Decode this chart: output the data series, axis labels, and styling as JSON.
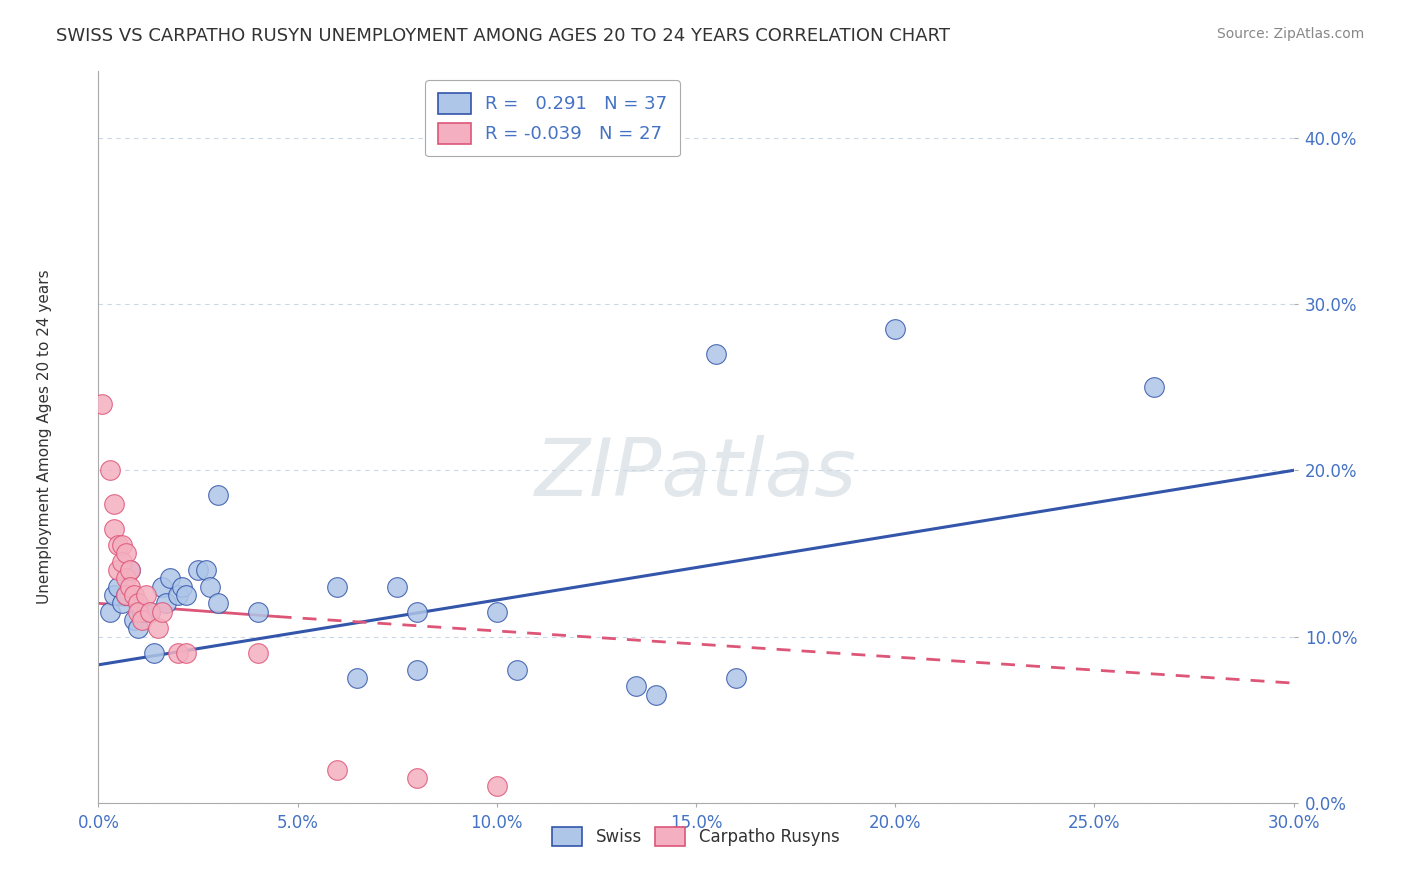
{
  "title": "SWISS VS CARPATHO RUSYN UNEMPLOYMENT AMONG AGES 20 TO 24 YEARS CORRELATION CHART",
  "source": "Source: ZipAtlas.com",
  "xlim": [
    0.0,
    0.3
  ],
  "ylim": [
    0.0,
    0.44
  ],
  "watermark": "ZIPatlas",
  "swiss_R": 0.291,
  "swiss_N": 37,
  "rusyn_R": -0.039,
  "rusyn_N": 27,
  "swiss_color": "#aec6e8",
  "rusyn_color": "#f4b0c0",
  "swiss_line_color": "#3355aa",
  "rusyn_line_color": "#dd5577",
  "background_color": "#ffffff",
  "grid_color": "#c8d8e8",
  "swiss_scatter": [
    [
      0.003,
      0.115
    ],
    [
      0.004,
      0.125
    ],
    [
      0.005,
      0.13
    ],
    [
      0.006,
      0.12
    ],
    [
      0.007,
      0.125
    ],
    [
      0.008,
      0.14
    ],
    [
      0.009,
      0.11
    ],
    [
      0.01,
      0.105
    ],
    [
      0.011,
      0.115
    ],
    [
      0.012,
      0.115
    ],
    [
      0.013,
      0.115
    ],
    [
      0.014,
      0.09
    ],
    [
      0.016,
      0.13
    ],
    [
      0.017,
      0.12
    ],
    [
      0.018,
      0.135
    ],
    [
      0.02,
      0.125
    ],
    [
      0.021,
      0.13
    ],
    [
      0.022,
      0.125
    ],
    [
      0.025,
      0.14
    ],
    [
      0.027,
      0.14
    ],
    [
      0.028,
      0.13
    ],
    [
      0.03,
      0.12
    ],
    [
      0.03,
      0.185
    ],
    [
      0.04,
      0.115
    ],
    [
      0.06,
      0.13
    ],
    [
      0.065,
      0.075
    ],
    [
      0.075,
      0.13
    ],
    [
      0.08,
      0.115
    ],
    [
      0.08,
      0.08
    ],
    [
      0.1,
      0.115
    ],
    [
      0.105,
      0.08
    ],
    [
      0.135,
      0.07
    ],
    [
      0.14,
      0.065
    ],
    [
      0.155,
      0.27
    ],
    [
      0.16,
      0.075
    ],
    [
      0.2,
      0.285
    ],
    [
      0.265,
      0.25
    ]
  ],
  "rusyn_scatter": [
    [
      0.001,
      0.24
    ],
    [
      0.003,
      0.2
    ],
    [
      0.004,
      0.18
    ],
    [
      0.004,
      0.165
    ],
    [
      0.005,
      0.155
    ],
    [
      0.005,
      0.14
    ],
    [
      0.006,
      0.155
    ],
    [
      0.006,
      0.145
    ],
    [
      0.007,
      0.15
    ],
    [
      0.007,
      0.135
    ],
    [
      0.007,
      0.125
    ],
    [
      0.008,
      0.14
    ],
    [
      0.008,
      0.13
    ],
    [
      0.009,
      0.125
    ],
    [
      0.01,
      0.12
    ],
    [
      0.01,
      0.115
    ],
    [
      0.011,
      0.11
    ],
    [
      0.012,
      0.125
    ],
    [
      0.013,
      0.115
    ],
    [
      0.015,
      0.105
    ],
    [
      0.016,
      0.115
    ],
    [
      0.02,
      0.09
    ],
    [
      0.022,
      0.09
    ],
    [
      0.04,
      0.09
    ],
    [
      0.06,
      0.02
    ],
    [
      0.08,
      0.015
    ],
    [
      0.1,
      0.01
    ]
  ],
  "swiss_line": [
    0.0,
    0.3
  ],
  "swiss_line_y": [
    0.083,
    0.2
  ],
  "rusyn_line": [
    0.0,
    0.3
  ],
  "rusyn_line_y": [
    0.12,
    0.072
  ]
}
